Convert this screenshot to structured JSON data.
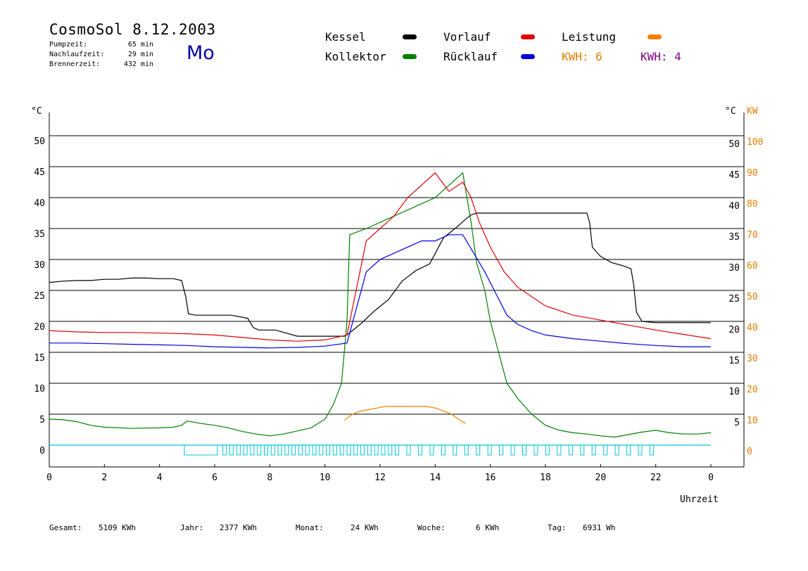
{
  "header": {
    "title": "CosmoSol 8.12.2003",
    "weekday": "Mo",
    "stats": [
      {
        "label": "Pumpzeit:",
        "value": "65 min"
      },
      {
        "label": "Nachlaufzeit:",
        "value": "29 min"
      },
      {
        "label": "Brennerzeit:",
        "value": "432 min"
      }
    ]
  },
  "legend": {
    "kessel": {
      "label": "Kessel",
      "color": "#000000"
    },
    "kollektor": {
      "label": "Kollektor",
      "color": "#008000"
    },
    "vorlauf": {
      "label": "Vorlauf",
      "color": "#e00000"
    },
    "ruecklauf": {
      "label": "Rücklauf",
      "color": "#0000e0"
    },
    "leistung": {
      "label": "Leistung",
      "color": "#f08000"
    },
    "kwh_orange": {
      "label": "KWH: 6",
      "color": "#e08000"
    },
    "kwh_purple": {
      "label": "KWH: 4",
      "color": "#800080"
    }
  },
  "footer": {
    "gesamt": {
      "label": "Gesamt:",
      "value": "5109 KWh"
    },
    "jahr": {
      "label": "Jahr:",
      "value": "2377 KWh"
    },
    "monat": {
      "label": "Monat:",
      "value": "24 KWh"
    },
    "woche": {
      "label": "Woche:",
      "value": "6 KWh"
    },
    "tag": {
      "label": "Tag:",
      "value": "6931 Wh"
    }
  },
  "chart_data": {
    "type": "line",
    "xlabel": "Uhrzeit",
    "ylabel": "°C",
    "y2label": "KW",
    "xlim": [
      0,
      24
    ],
    "ylim": [
      0,
      50
    ],
    "y2lim": [
      0,
      100
    ],
    "xticks": [
      "0",
      "2",
      "4",
      "6",
      "8",
      "10",
      "12",
      "14",
      "16",
      "18",
      "20",
      "22",
      "0"
    ],
    "yticks": [
      0,
      5,
      10,
      15,
      20,
      25,
      30,
      35,
      40,
      45,
      50
    ],
    "y2ticks": [
      0,
      10,
      20,
      30,
      40,
      50,
      60,
      70,
      80,
      90,
      100
    ],
    "grid": true,
    "colors": {
      "grid": "#000000",
      "right_axis": "#e08000",
      "pump": "#00c8d8",
      "pump_alt": "#800080"
    },
    "series": [
      {
        "name": "Kessel",
        "color": "#000000",
        "x": [
          0,
          0.5,
          1,
          1.5,
          2,
          2.5,
          3,
          3.5,
          4,
          4.5,
          4.8,
          4.95,
          5.05,
          5.3,
          6,
          6.6,
          7.2,
          7.4,
          7.6,
          8.2,
          9,
          10,
          10.7,
          10.8,
          11.3,
          11.8,
          12.3,
          12.8,
          13.3,
          13.8,
          14.3,
          14.8,
          15.1,
          15.3,
          15.5,
          16,
          17,
          18,
          19,
          19.5,
          19.6,
          19.65,
          19.7,
          19.85,
          20,
          20.4,
          20.8,
          21.1,
          21.2,
          21.3,
          21.5,
          22,
          23,
          24
        ],
        "y": [
          26.3,
          26.5,
          26.6,
          26.6,
          26.8,
          26.8,
          27,
          27,
          26.9,
          26.9,
          26.6,
          24,
          21.2,
          21,
          21,
          21,
          20.5,
          19,
          18.6,
          18.6,
          17.6,
          17.6,
          17.6,
          17.8,
          19.6,
          21.7,
          23.5,
          26.5,
          28.2,
          29.3,
          33.5,
          35.3,
          36.5,
          37.2,
          37.5,
          37.5,
          37.5,
          37.5,
          37.5,
          37.5,
          36,
          34,
          32,
          31.2,
          30.5,
          29.5,
          29,
          28.5,
          26,
          21.5,
          20,
          19.8,
          19.8,
          19.8
        ]
      },
      {
        "name": "Kollektor",
        "color": "#008000",
        "x": [
          0,
          0.5,
          1,
          1.5,
          2,
          3,
          4,
          4.5,
          4.8,
          5,
          5.5,
          6,
          6.5,
          7,
          7.5,
          8,
          8.5,
          9,
          9.5,
          10,
          10.3,
          10.6,
          10.8,
          10.9,
          11.5,
          12,
          12.5,
          13,
          13.5,
          14,
          14.5,
          15,
          15.3,
          15.5,
          15.8,
          16,
          16.3,
          16.6,
          17,
          17.5,
          18,
          18.5,
          19,
          19.5,
          20,
          20.5,
          21,
          21.5,
          22,
          22.5,
          23,
          23.5,
          24
        ],
        "y": [
          4.2,
          4.1,
          3.8,
          3.2,
          2.9,
          2.7,
          2.8,
          2.9,
          3.2,
          3.9,
          3.5,
          3.2,
          2.8,
          2.2,
          1.8,
          1.5,
          1.8,
          2.3,
          2.8,
          4.2,
          6.5,
          10,
          20,
          34,
          35,
          36,
          37,
          38,
          39,
          40,
          42,
          44,
          36,
          29.5,
          25,
          20,
          15,
          10,
          7.5,
          5,
          3.2,
          2.4,
          2.0,
          1.8,
          1.5,
          1.3,
          1.7,
          2.1,
          2.4,
          2.0,
          1.8,
          1.8,
          2.0
        ]
      },
      {
        "name": "Vorlauf",
        "color": "#e00000",
        "x": [
          0,
          1,
          2,
          3,
          4,
          5,
          6,
          7,
          8,
          9,
          10,
          10.8,
          11.5,
          12,
          12.5,
          13,
          13.5,
          14,
          14.5,
          15,
          15.3,
          15.6,
          16,
          16.5,
          17,
          18,
          19,
          20,
          21,
          22,
          23,
          24
        ],
        "y": [
          18.5,
          18.3,
          18.2,
          18.2,
          18.1,
          18,
          17.8,
          17.4,
          17,
          16.8,
          17,
          17.8,
          33,
          35,
          37,
          40,
          42,
          44,
          41,
          42.5,
          40,
          36,
          32,
          28,
          25.5,
          22.5,
          21,
          20.2,
          19.4,
          18.6,
          17.9,
          17.2
        ]
      },
      {
        "name": "Rücklauf",
        "color": "#0000e0",
        "x": [
          0,
          1,
          2,
          3,
          4,
          5,
          6,
          7,
          8,
          9,
          10,
          10.8,
          11.5,
          12,
          12.5,
          13,
          13.5,
          14,
          14.5,
          15,
          15.4,
          15.8,
          16.2,
          16.6,
          17,
          17.5,
          18,
          19,
          20,
          21,
          22,
          23,
          24
        ],
        "y": [
          16.5,
          16.5,
          16.4,
          16.3,
          16.2,
          16.1,
          15.9,
          15.8,
          15.7,
          15.8,
          16,
          16.5,
          28,
          30,
          31,
          32,
          33,
          33,
          34,
          34,
          31,
          28,
          24.5,
          21,
          19.5,
          18.5,
          17.8,
          17.2,
          16.8,
          16.4,
          16.1,
          15.9,
          15.9
        ]
      },
      {
        "name": "Leistung",
        "color": "#f08000",
        "axis": "right",
        "x": [
          10.7,
          11,
          11.3,
          11.6,
          11.9,
          12.2,
          12.5,
          12.8,
          13.1,
          13.4,
          13.7,
          14,
          14.3,
          14.6,
          14.9,
          15.1
        ],
        "y": [
          8,
          10,
          11,
          11.5,
          12,
          12.5,
          12.5,
          12.5,
          12.5,
          12.5,
          12.5,
          12,
          11,
          10,
          8,
          7
        ]
      }
    ]
  }
}
